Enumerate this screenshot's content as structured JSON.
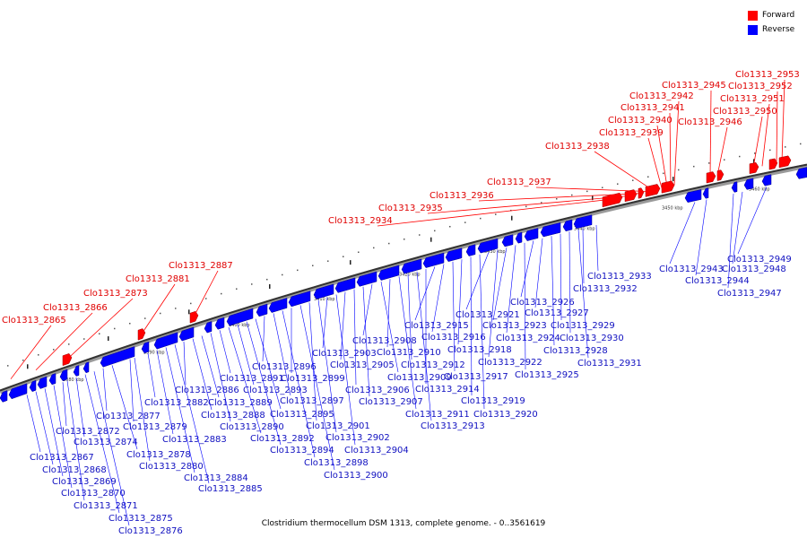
{
  "legend": {
    "forward_label": "Forward",
    "reverse_label": "Reverse",
    "forward_color": "#ff0000",
    "reverse_color": "#0000ff"
  },
  "caption": "Clostridium thermocellum DSM 1313, complete genome. - 0..3561619",
  "axis_ticks": [
    "3380 kbp",
    "3390 kbp",
    "3400 kbp",
    "3410 kbp",
    "3420 kbp",
    "3430 kbp",
    "3440 kbp",
    "3450 kbp",
    "3460 kbp"
  ],
  "forward_genes": [
    "Clo1313_2865",
    "Clo1313_2866",
    "Clo1313_2873",
    "Clo1313_2881",
    "Clo1313_2887",
    "Clo1313_2934",
    "Clo1313_2935",
    "Clo1313_2936",
    "Clo1313_2937",
    "Clo1313_2938",
    "Clo1313_2939",
    "Clo1313_2940",
    "Clo1313_2941",
    "Clo1313_2942",
    "Clo1313_2945",
    "Clo1313_2946",
    "Clo1313_2950",
    "Clo1313_2951",
    "Clo1313_2952",
    "Clo1313_2953"
  ],
  "reverse_genes": [
    "Clo1313_2867",
    "Clo1313_2868",
    "Clo1313_2869",
    "Clo1313_2870",
    "Clo1313_2871",
    "Clo1313_2872",
    "Clo1313_2874",
    "Clo1313_2875",
    "Clo1313_2876",
    "Clo1313_2877",
    "Clo1313_2878",
    "Clo1313_2879",
    "Clo1313_2880",
    "Clo1313_2882",
    "Clo1313_2883",
    "Clo1313_2884",
    "Clo1313_2885",
    "Clo1313_2886",
    "Clo1313_2888",
    "Clo1313_2889",
    "Clo1313_2890",
    "Clo1313_2891",
    "Clo1313_2892",
    "Clo1313_2893",
    "Clo1313_2894",
    "Clo1313_2895",
    "Clo1313_2896",
    "Clo1313_2897",
    "Clo1313_2898",
    "Clo1313_2899",
    "Clo1313_2900",
    "Clo1313_2901",
    "Clo1313_2902",
    "Clo1313_2903",
    "Clo1313_2904",
    "Clo1313_2905",
    "Clo1313_2906",
    "Clo1313_2907",
    "Clo1313_2908",
    "Clo1313_2909",
    "Clo1313_2910",
    "Clo1313_2911",
    "Clo1313_2912",
    "Clo1313_2913",
    "Clo1313_2914",
    "Clo1313_2915",
    "Clo1313_2916",
    "Clo1313_2917",
    "Clo1313_2918",
    "Clo1313_2919",
    "Clo1313_2920",
    "Clo1313_2921",
    "Clo1313_2922",
    "Clo1313_2923",
    "Clo1313_2924",
    "Clo1313_2925",
    "Clo1313_2926",
    "Clo1313_2927",
    "Clo1313_2928",
    "Clo1313_2929",
    "Clo1313_2930",
    "Clo1313_2931",
    "Clo1313_2932",
    "Clo1313_2933",
    "Clo1313_2943",
    "Clo1313_2944",
    "Clo1313_2947",
    "Clo1313_2948",
    "Clo1313_2949"
  ]
}
